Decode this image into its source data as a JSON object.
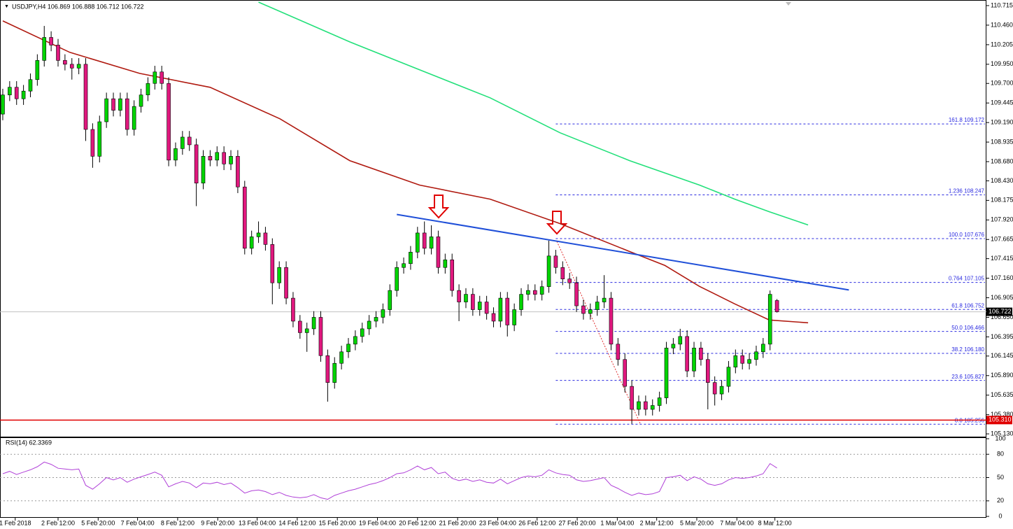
{
  "chart_data": {
    "type": "candlestick",
    "title": "USDJPY,H4  106.869 106.888 106.712 106.722",
    "up_color": "#00d400",
    "down_color": "#e0187e",
    "x": [
      0,
      1,
      2,
      3,
      4,
      5,
      6,
      7,
      8,
      9,
      10,
      11,
      12,
      13,
      14,
      15,
      16,
      17,
      18,
      19,
      20,
      21,
      22,
      23,
      24,
      25,
      26,
      27,
      28,
      29,
      30,
      31,
      32,
      33,
      34,
      35,
      36,
      37,
      38,
      39,
      40,
      41,
      42,
      43,
      44,
      45,
      46,
      47,
      48,
      49,
      50,
      51,
      52,
      53,
      54,
      55,
      56,
      57,
      58,
      59,
      60,
      61,
      62,
      63,
      64,
      65,
      66,
      67,
      68,
      69,
      70,
      71,
      72,
      73,
      74,
      75,
      76,
      77,
      78,
      79,
      80,
      81,
      82,
      83,
      84,
      85,
      86,
      87,
      88,
      89,
      90,
      91,
      92,
      93,
      94,
      95,
      96,
      97,
      98,
      99,
      100,
      101,
      102,
      103,
      104,
      105,
      106,
      107,
      108,
      109,
      110,
      111,
      112
    ],
    "ohlc": [
      [
        109.3,
        109.63,
        109.22,
        109.55
      ],
      [
        109.55,
        109.73,
        109.47,
        109.65
      ],
      [
        109.65,
        109.73,
        109.42,
        109.5
      ],
      [
        109.5,
        109.68,
        109.42,
        109.6
      ],
      [
        109.6,
        109.83,
        109.52,
        109.75
      ],
      [
        109.75,
        110.08,
        109.67,
        110.0
      ],
      [
        110.0,
        110.45,
        109.92,
        110.3
      ],
      [
        110.3,
        110.38,
        110.12,
        110.2
      ],
      [
        110.2,
        110.28,
        109.92,
        110.0
      ],
      [
        110.0,
        110.08,
        109.87,
        109.95
      ],
      [
        109.95,
        110.03,
        109.75,
        109.9
      ],
      [
        109.9,
        110.03,
        109.82,
        109.95
      ],
      [
        109.95,
        110.03,
        108.95,
        109.1
      ],
      [
        109.1,
        109.18,
        108.6,
        108.75
      ],
      [
        108.75,
        109.28,
        108.67,
        109.2
      ],
      [
        109.2,
        109.58,
        109.12,
        109.5
      ],
      [
        109.5,
        109.58,
        109.27,
        109.35
      ],
      [
        109.35,
        109.58,
        109.27,
        109.5
      ],
      [
        109.5,
        109.58,
        109.02,
        109.1
      ],
      [
        109.1,
        109.48,
        109.02,
        109.4
      ],
      [
        109.4,
        109.63,
        109.32,
        109.55
      ],
      [
        109.55,
        109.78,
        109.47,
        109.7
      ],
      [
        109.7,
        109.93,
        109.62,
        109.85
      ],
      [
        109.85,
        109.93,
        109.62,
        109.7
      ],
      [
        109.7,
        109.78,
        108.62,
        108.7
      ],
      [
        108.7,
        108.93,
        108.62,
        108.85
      ],
      [
        108.85,
        109.08,
        108.77,
        109.0
      ],
      [
        109.0,
        109.08,
        108.82,
        108.9
      ],
      [
        108.9,
        108.98,
        108.1,
        108.4
      ],
      [
        108.4,
        108.83,
        108.32,
        108.75
      ],
      [
        108.75,
        108.83,
        108.62,
        108.7
      ],
      [
        108.7,
        108.88,
        108.62,
        108.8
      ],
      [
        108.8,
        108.88,
        108.57,
        108.65
      ],
      [
        108.65,
        108.83,
        108.57,
        108.75
      ],
      [
        108.75,
        108.83,
        108.27,
        108.35
      ],
      [
        108.35,
        108.43,
        107.47,
        107.55
      ],
      [
        107.55,
        107.78,
        107.47,
        107.7
      ],
      [
        107.7,
        107.9,
        107.62,
        107.75
      ],
      [
        107.75,
        107.83,
        107.52,
        107.6
      ],
      [
        107.6,
        107.68,
        106.82,
        107.1
      ],
      [
        107.1,
        107.38,
        107.02,
        107.3
      ],
      [
        107.3,
        107.38,
        106.82,
        106.9
      ],
      [
        106.9,
        106.98,
        106.52,
        106.6
      ],
      [
        106.6,
        106.68,
        106.37,
        106.45
      ],
      [
        106.45,
        106.58,
        106.2,
        106.5
      ],
      [
        106.5,
        106.73,
        106.42,
        106.65
      ],
      [
        106.65,
        106.73,
        106.07,
        106.15
      ],
      [
        106.15,
        106.23,
        105.55,
        105.8
      ],
      [
        105.8,
        106.13,
        105.72,
        106.05
      ],
      [
        106.05,
        106.28,
        105.97,
        106.2
      ],
      [
        106.2,
        106.38,
        106.12,
        106.3
      ],
      [
        106.3,
        106.48,
        106.22,
        106.4
      ],
      [
        106.4,
        106.58,
        106.32,
        106.5
      ],
      [
        106.5,
        106.68,
        106.42,
        106.6
      ],
      [
        106.6,
        106.73,
        106.52,
        106.65
      ],
      [
        106.65,
        106.83,
        106.57,
        106.75
      ],
      [
        106.75,
        107.08,
        106.67,
        107.0
      ],
      [
        107.0,
        107.38,
        106.92,
        107.3
      ],
      [
        107.3,
        107.43,
        107.22,
        107.35
      ],
      [
        107.35,
        107.58,
        107.27,
        107.5
      ],
      [
        107.5,
        107.83,
        107.42,
        107.75
      ],
      [
        107.75,
        107.9,
        107.47,
        107.55
      ],
      [
        107.55,
        107.85,
        107.47,
        107.7
      ],
      [
        107.7,
        107.78,
        107.22,
        107.3
      ],
      [
        107.3,
        107.48,
        107.22,
        107.4
      ],
      [
        107.4,
        107.48,
        106.92,
        107.0
      ],
      [
        107.0,
        107.08,
        106.6,
        106.85
      ],
      [
        106.85,
        107.03,
        106.77,
        106.95
      ],
      [
        106.95,
        107.03,
        106.67,
        106.75
      ],
      [
        106.75,
        106.93,
        106.67,
        106.85
      ],
      [
        106.85,
        106.93,
        106.62,
        106.7
      ],
      [
        106.7,
        106.78,
        106.52,
        106.6
      ],
      [
        106.6,
        106.98,
        106.52,
        106.9
      ],
      [
        106.9,
        106.98,
        106.4,
        106.55
      ],
      [
        106.55,
        106.83,
        106.47,
        106.75
      ],
      [
        106.75,
        107.03,
        106.67,
        106.95
      ],
      [
        106.95,
        107.08,
        106.87,
        107.0
      ],
      [
        107.0,
        107.08,
        106.87,
        106.95
      ],
      [
        106.95,
        107.13,
        106.87,
        107.05
      ],
      [
        107.05,
        107.65,
        106.97,
        107.45
      ],
      [
        107.45,
        107.53,
        107.22,
        107.3
      ],
      [
        107.3,
        107.38,
        107.07,
        107.15
      ],
      [
        107.15,
        107.23,
        107.02,
        107.1
      ],
      [
        107.1,
        107.18,
        106.72,
        106.8
      ],
      [
        106.8,
        106.88,
        106.62,
        106.7
      ],
      [
        106.7,
        106.83,
        106.62,
        106.75
      ],
      [
        106.75,
        106.93,
        106.67,
        106.85
      ],
      [
        106.85,
        107.2,
        106.77,
        106.9
      ],
      [
        106.9,
        106.98,
        106.22,
        106.3
      ],
      [
        106.3,
        106.38,
        106.02,
        106.1
      ],
      [
        106.1,
        106.18,
        105.67,
        105.75
      ],
      [
        105.75,
        105.83,
        105.26,
        105.45
      ],
      [
        105.45,
        105.63,
        105.37,
        105.55
      ],
      [
        105.55,
        105.63,
        105.37,
        105.45
      ],
      [
        105.45,
        105.58,
        105.37,
        105.5
      ],
      [
        105.5,
        105.68,
        105.42,
        105.6
      ],
      [
        105.6,
        106.33,
        105.52,
        106.25
      ],
      [
        106.25,
        106.38,
        106.17,
        106.3
      ],
      [
        106.3,
        106.5,
        106.22,
        106.4
      ],
      [
        106.4,
        106.48,
        105.87,
        105.95
      ],
      [
        105.95,
        106.33,
        105.87,
        106.25
      ],
      [
        106.25,
        106.33,
        106.02,
        106.1
      ],
      [
        106.1,
        106.18,
        105.45,
        105.8
      ],
      [
        105.8,
        105.88,
        105.5,
        105.65
      ],
      [
        105.65,
        105.83,
        105.57,
        105.75
      ],
      [
        105.75,
        106.08,
        105.67,
        106.0
      ],
      [
        106.0,
        106.23,
        105.92,
        106.15
      ],
      [
        106.15,
        106.23,
        105.97,
        106.05
      ],
      [
        106.05,
        106.18,
        105.97,
        106.1
      ],
      [
        106.1,
        106.28,
        106.02,
        106.2
      ],
      [
        106.2,
        106.38,
        106.12,
        106.3
      ],
      [
        106.3,
        107.0,
        106.22,
        106.95
      ],
      [
        106.869,
        106.888,
        106.712,
        106.722
      ]
    ],
    "xlim": [
      -0.4,
      142.3
    ],
    "xticks": [
      {
        "value": 1.8,
        "label": "1 Feb 2018"
      },
      {
        "value": 8.0,
        "label": "2 Feb 12:00"
      },
      {
        "value": 13.8,
        "label": "5 Feb 20:00"
      },
      {
        "value": 19.5,
        "label": "7 Feb 04:00"
      },
      {
        "value": 25.3,
        "label": "8 Feb 12:00"
      },
      {
        "value": 31.1,
        "label": "9 Feb 20:00"
      },
      {
        "value": 36.8,
        "label": "13 Feb 04:00"
      },
      {
        "value": 42.6,
        "label": "14 Feb 12:00"
      },
      {
        "value": 48.4,
        "label": "15 Feb 20:00"
      },
      {
        "value": 54.2,
        "label": "19 Feb 04:00"
      },
      {
        "value": 60.0,
        "label": "20 Feb 12:00"
      },
      {
        "value": 65.8,
        "label": "21 Feb 20:00"
      },
      {
        "value": 71.6,
        "label": "23 Feb 04:00"
      },
      {
        "value": 77.3,
        "label": "26 Feb 12:00"
      },
      {
        "value": 83.1,
        "label": "27 Feb 20:00"
      },
      {
        "value": 88.9,
        "label": "1 Mar 04:00"
      },
      {
        "value": 94.6,
        "label": "2 Mar 12:00"
      },
      {
        "value": 100.4,
        "label": "5 Mar 20:00"
      },
      {
        "value": 106.2,
        "label": "7 Mar 04:00"
      },
      {
        "value": 111.7,
        "label": "8 Mar 12:00"
      }
    ],
    "ylim": [
      105.094,
      110.788
    ],
    "yticks": [
      110.715,
      {
        "value": 110.46,
        "label": "110.460"
      },
      110.205,
      {
        "value": 109.95,
        "label": "109.950"
      },
      {
        "value": 109.7,
        "label": "109.700"
      },
      109.445,
      {
        "value": 109.19,
        "label": "109.190"
      },
      108.935,
      {
        "value": 108.68,
        "label": "108.680"
      },
      {
        "value": 108.43,
        "label": "108.430"
      },
      108.175,
      {
        "value": 107.92,
        "label": "107.920"
      },
      107.665,
      107.415,
      {
        "value": 107.16,
        "label": "107.160"
      },
      106.905,
      {
        "value": 106.65,
        "label": "106.650"
      },
      106.395,
      106.145,
      {
        "value": 105.89,
        "label": "105.890"
      },
      105.635,
      {
        "value": 105.38,
        "label": "105.380"
      },
      {
        "value": 105.13,
        "label": "105.130"
      }
    ],
    "current_price": 106.722,
    "hline": {
      "value": 105.31,
      "label": "105.310",
      "color": "#e00000"
    },
    "lines": [
      {
        "color": "#b01a10",
        "x": [
          0,
          9.7,
          19.8,
          30.0,
          40.1,
          50.2,
          60.3,
          70.5,
          80.6,
          90.7,
          95.8,
          100.8,
          105.9,
          110.9,
          116.5
        ],
        "values": [
          110.515,
          110.105,
          109.831,
          109.649,
          109.239,
          108.693,
          108.374,
          108.191,
          107.873,
          107.508,
          107.326,
          107.053,
          106.825,
          106.615,
          106.579
        ]
      },
      {
        "color": "#22e07a",
        "x": [
          37.0,
          50.2,
          60.3,
          70.5,
          80.6,
          90.7,
          100.8,
          105.9,
          110.9,
          116.5
        ],
        "values": [
          110.761,
          110.241,
          109.877,
          109.512,
          109.057,
          108.693,
          108.374,
          108.191,
          108.027,
          107.854
        ]
      }
    ],
    "trendline": {
      "color": "#1f4fd8",
      "x": [
        57.0,
        122.4
      ],
      "values": [
        107.991,
        107.007
      ]
    },
    "fib": {
      "color": "#2a2ae0",
      "x_start": 80.0,
      "levels": [
        {
          "value": 109.172,
          "label": "161.8 109.172"
        },
        {
          "value": 108.247,
          "label": "1.236 108.247"
        },
        {
          "value": 107.676,
          "label": "100.0 107.676"
        },
        {
          "value": 107.105,
          "label": "0.764 107.105"
        },
        {
          "value": 106.752,
          "label": "61.8 106.752"
        },
        {
          "value": 106.466,
          "label": "50.0 106.466"
        },
        {
          "value": 106.18,
          "label": "38.2 106.180"
        },
        {
          "value": 105.827,
          "label": "23.6 105.827"
        },
        {
          "value": 105.256,
          "label": "0.0 105.256"
        }
      ]
    },
    "rsi": {
      "label": "RSI(14) 62.3369",
      "color": "#b040d8",
      "ylim": [
        0,
        100
      ],
      "yticks": [
        100,
        80,
        50,
        20,
        0
      ],
      "values": [
        55,
        58,
        54,
        57,
        60,
        64,
        70,
        67,
        62,
        61,
        60,
        61,
        40,
        35,
        42,
        50,
        47,
        50,
        44,
        48,
        51,
        54,
        57,
        53,
        38,
        42,
        45,
        43,
        37,
        43,
        42,
        44,
        41,
        43,
        37,
        30,
        33,
        34,
        32,
        28,
        31,
        27,
        25,
        24,
        25,
        28,
        24,
        22,
        27,
        30,
        33,
        35,
        38,
        41,
        43,
        46,
        50,
        55,
        56,
        60,
        65,
        60,
        63,
        55,
        57,
        49,
        46,
        48,
        45,
        47,
        44,
        43,
        48,
        42,
        46,
        50,
        52,
        51,
        53,
        60,
        56,
        54,
        53,
        47,
        45,
        46,
        48,
        50,
        40,
        36,
        31,
        27,
        30,
        28,
        29,
        32,
        50,
        51,
        53,
        46,
        51,
        48,
        42,
        40,
        42,
        47,
        50,
        49,
        50,
        52,
        55,
        68,
        62.3369
      ]
    }
  }
}
